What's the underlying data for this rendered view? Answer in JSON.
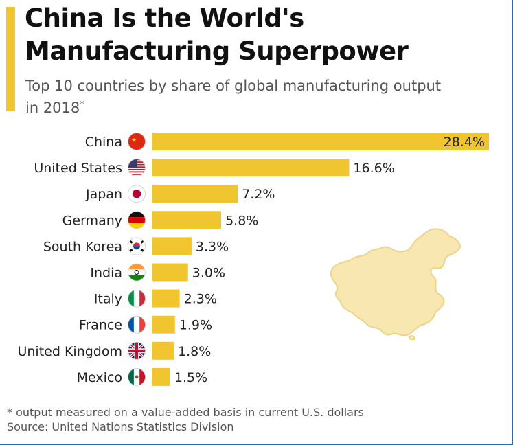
{
  "header": {
    "title_line1": "China Is the World's",
    "title_line2": "Manufacturing Superpower",
    "subtitle": "Top 10 countries by share of global manufacturing output in 2018",
    "subtitle_mark": "*"
  },
  "footer": {
    "footnote": "* output measured on a value-added basis in current U.S. dollars",
    "source": "Source: United Nations Statistics Division"
  },
  "colors": {
    "bar": "#f0c530",
    "accent": "#f0c530",
    "map_fill": "#f8e7b0",
    "map_stroke": "#ecd38a"
  },
  "decor": {
    "map_icon": "china-map-icon"
  },
  "chart_data": {
    "type": "bar",
    "orientation": "horizontal",
    "title": "China Is the World's Manufacturing Superpower",
    "subtitle": "Top 10 countries by share of global manufacturing output in 2018*",
    "xlabel": "",
    "ylabel": "",
    "xlim": [
      0,
      28.4
    ],
    "grid": false,
    "legend": "none",
    "categories": [
      "China",
      "United States",
      "Japan",
      "Germany",
      "South Korea",
      "India",
      "Italy",
      "France",
      "United Kingdom",
      "Mexico"
    ],
    "values": [
      28.4,
      16.6,
      7.2,
      5.8,
      3.3,
      3.0,
      2.3,
      1.9,
      1.8,
      1.5
    ],
    "value_labels": [
      "28.4%",
      "16.6%",
      "7.2%",
      "5.8%",
      "3.3%",
      "3.0%",
      "2.3%",
      "1.9%",
      "1.8%",
      "1.5%"
    ],
    "flag_icons": [
      "china-flag-icon",
      "usa-flag-icon",
      "japan-flag-icon",
      "germany-flag-icon",
      "south-korea-flag-icon",
      "india-flag-icon",
      "italy-flag-icon",
      "france-flag-icon",
      "uk-flag-icon",
      "mexico-flag-icon"
    ]
  }
}
